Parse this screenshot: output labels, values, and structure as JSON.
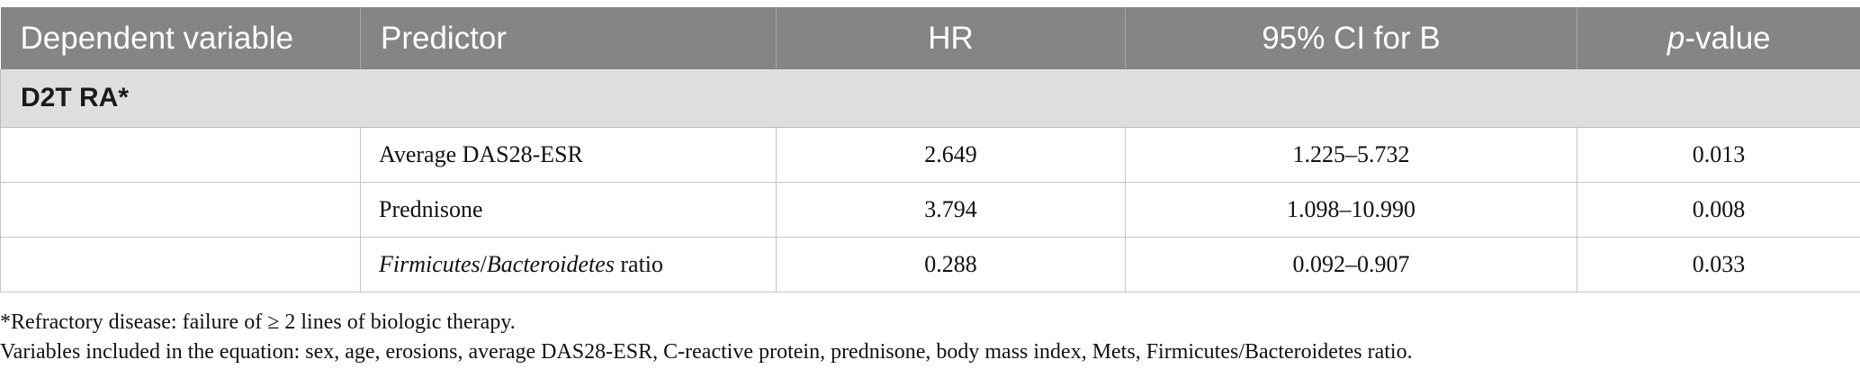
{
  "table": {
    "headers": [
      "Dependent variable",
      "Predictor",
      "HR",
      "95% CI for B",
      "p-value"
    ],
    "header_pvalue_p": "p",
    "header_pvalue_rest": "-value",
    "section_label": "D2T RA*",
    "rows": [
      {
        "dependent": "",
        "predictor_italic_1": "",
        "predictor_sep": "",
        "predictor_italic_2": "",
        "predictor_plain": "Average DAS28-ESR",
        "hr": "2.649",
        "ci": "1.225–5.732",
        "p": "0.013"
      },
      {
        "dependent": "",
        "predictor_italic_1": "",
        "predictor_sep": "",
        "predictor_italic_2": "",
        "predictor_plain": "Prednisone",
        "hr": "3.794",
        "ci": "1.098–10.990",
        "p": "0.008"
      },
      {
        "dependent": "",
        "predictor_italic_1": "Firmicutes",
        "predictor_sep": "/",
        "predictor_italic_2": "Bacteroidetes",
        "predictor_plain": " ratio",
        "hr": "0.288",
        "ci": "0.092–0.907",
        "p": "0.033"
      }
    ]
  },
  "notes": {
    "note1": "*Refractory disease: failure of ≥ 2 lines of biologic therapy.",
    "note2": "Variables included in the equation: sex, age, erosions, average DAS28-ESR, C-reactive protein, prednisone, body mass index, Mets, Firmicutes/Bacteroidetes ratio."
  },
  "colors": {
    "header_bg": "#858583",
    "section_bg": "#e0dfdf"
  }
}
